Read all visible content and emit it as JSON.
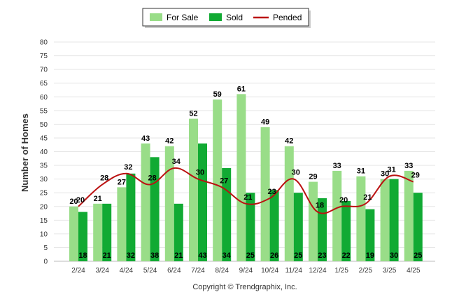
{
  "chart_data": {
    "type": "bar",
    "ylabel": "Number of Homes",
    "credit": "Copyright © Trendgraphix, Inc.",
    "ylim": [
      0,
      80
    ],
    "yticks": [
      "0",
      "5",
      "10",
      "15",
      "20",
      "25",
      "30",
      "35",
      "40",
      "45",
      "50",
      "55",
      "60",
      "65",
      "70",
      "75",
      "80"
    ],
    "categories": [
      "2/24",
      "3/24",
      "4/24",
      "5/24",
      "6/24",
      "7/24",
      "8/24",
      "9/24",
      "10/24",
      "11/24",
      "12/24",
      "1/25",
      "2/25",
      "3/25",
      "4/25"
    ],
    "legend_position": "top-center",
    "grid": true,
    "series": [
      {
        "name": "For Sale",
        "type": "bar",
        "color": "#99dd88",
        "values": [
          20,
          21,
          27,
          43,
          42,
          52,
          59,
          61,
          49,
          42,
          29,
          33,
          31,
          30,
          33
        ]
      },
      {
        "name": "Sold",
        "type": "bar",
        "color": "#11aa33",
        "values": [
          18,
          21,
          32,
          38,
          21,
          43,
          34,
          25,
          26,
          25,
          23,
          22,
          19,
          30,
          25
        ]
      },
      {
        "name": "Pended",
        "type": "line",
        "color": "#bb1111",
        "values": [
          20,
          28,
          32,
          28,
          34,
          30,
          27,
          21,
          23,
          30,
          18,
          20,
          21,
          31,
          29
        ]
      }
    ]
  }
}
